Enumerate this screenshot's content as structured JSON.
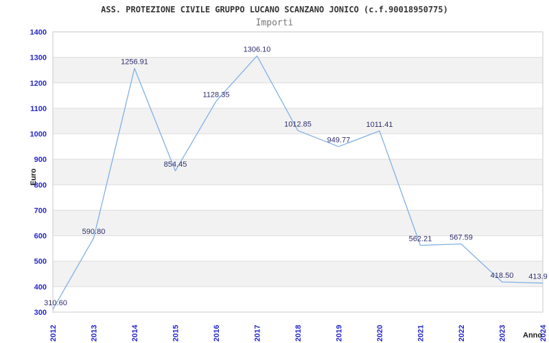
{
  "header": {
    "title": "ASS. PROTEZIONE CIVILE GRUPPO LUCANO SCANZANO JONICO (c.f.90018950775)",
    "subtitle": "Importi"
  },
  "chart_data": {
    "type": "line",
    "title": "ASS. PROTEZIONE CIVILE GRUPPO LUCANO SCANZANO JONICO (c.f.90018950775)",
    "subtitle": "Importi",
    "xlabel": "Anno",
    "ylabel": "Euro",
    "categories": [
      "2012",
      "2013",
      "2014",
      "2015",
      "2016",
      "2017",
      "2018",
      "2019",
      "2020",
      "2021",
      "2022",
      "2023",
      "2024"
    ],
    "values": [
      310.6,
      590.8,
      1256.91,
      854.45,
      1128.35,
      1306.1,
      1012.85,
      949.77,
      1011.41,
      562.21,
      567.59,
      418.5,
      413.9
    ],
    "point_labels": [
      "310.60",
      "590.80",
      "1256.91",
      "854.45",
      "1128.35",
      "1306.10",
      "1012.85",
      "949.77",
      "1011.41",
      "562.21",
      "567.59",
      "418.50",
      "413.9"
    ],
    "ylim": [
      300,
      1400
    ],
    "ytick_step": 100,
    "yticks": [
      "300",
      "400",
      "500",
      "600",
      "700",
      "800",
      "900",
      "1000",
      "1100",
      "1200",
      "1300",
      "1400"
    ],
    "grid": true,
    "band_fill": "alternating horizontal bands every 100",
    "legend": "none",
    "colors": {
      "line": "#7fb0e4",
      "tick_label": "#2525cc",
      "data_label": "#2e2e6e",
      "band": "#f2f2f2",
      "grid": "#dcdcdc",
      "border": "#c9c9c9",
      "axis_title": "#1a1a1a"
    }
  }
}
